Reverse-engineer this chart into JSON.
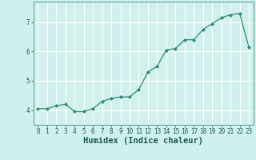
{
  "x": [
    0,
    1,
    2,
    3,
    4,
    5,
    6,
    7,
    8,
    9,
    10,
    11,
    12,
    13,
    14,
    15,
    16,
    17,
    18,
    19,
    20,
    21,
    22,
    23
  ],
  "y": [
    4.05,
    4.05,
    4.15,
    4.2,
    3.95,
    3.95,
    4.05,
    4.3,
    4.4,
    4.45,
    4.45,
    4.7,
    5.3,
    5.5,
    6.05,
    6.1,
    6.4,
    6.4,
    6.75,
    6.95,
    7.15,
    7.25,
    7.3,
    6.15
  ],
  "xlabel": "Humidex (Indice chaleur)",
  "line_color": "#2e8b74",
  "marker": "D",
  "marker_size": 2.0,
  "line_width": 0.9,
  "background_color": "#cff0ec",
  "grid_color": "#ffffff",
  "spine_color": "#5a9a90",
  "ylim": [
    3.5,
    7.7
  ],
  "yticks": [
    4,
    5,
    6,
    7
  ],
  "xticks": [
    0,
    1,
    2,
    3,
    4,
    5,
    6,
    7,
    8,
    9,
    10,
    11,
    12,
    13,
    14,
    15,
    16,
    17,
    18,
    19,
    20,
    21,
    22,
    23
  ],
  "tick_fontsize": 5.5,
  "xlabel_fontsize": 7.5,
  "tick_color": "#2e6b60",
  "text_color": "#1a5a50"
}
